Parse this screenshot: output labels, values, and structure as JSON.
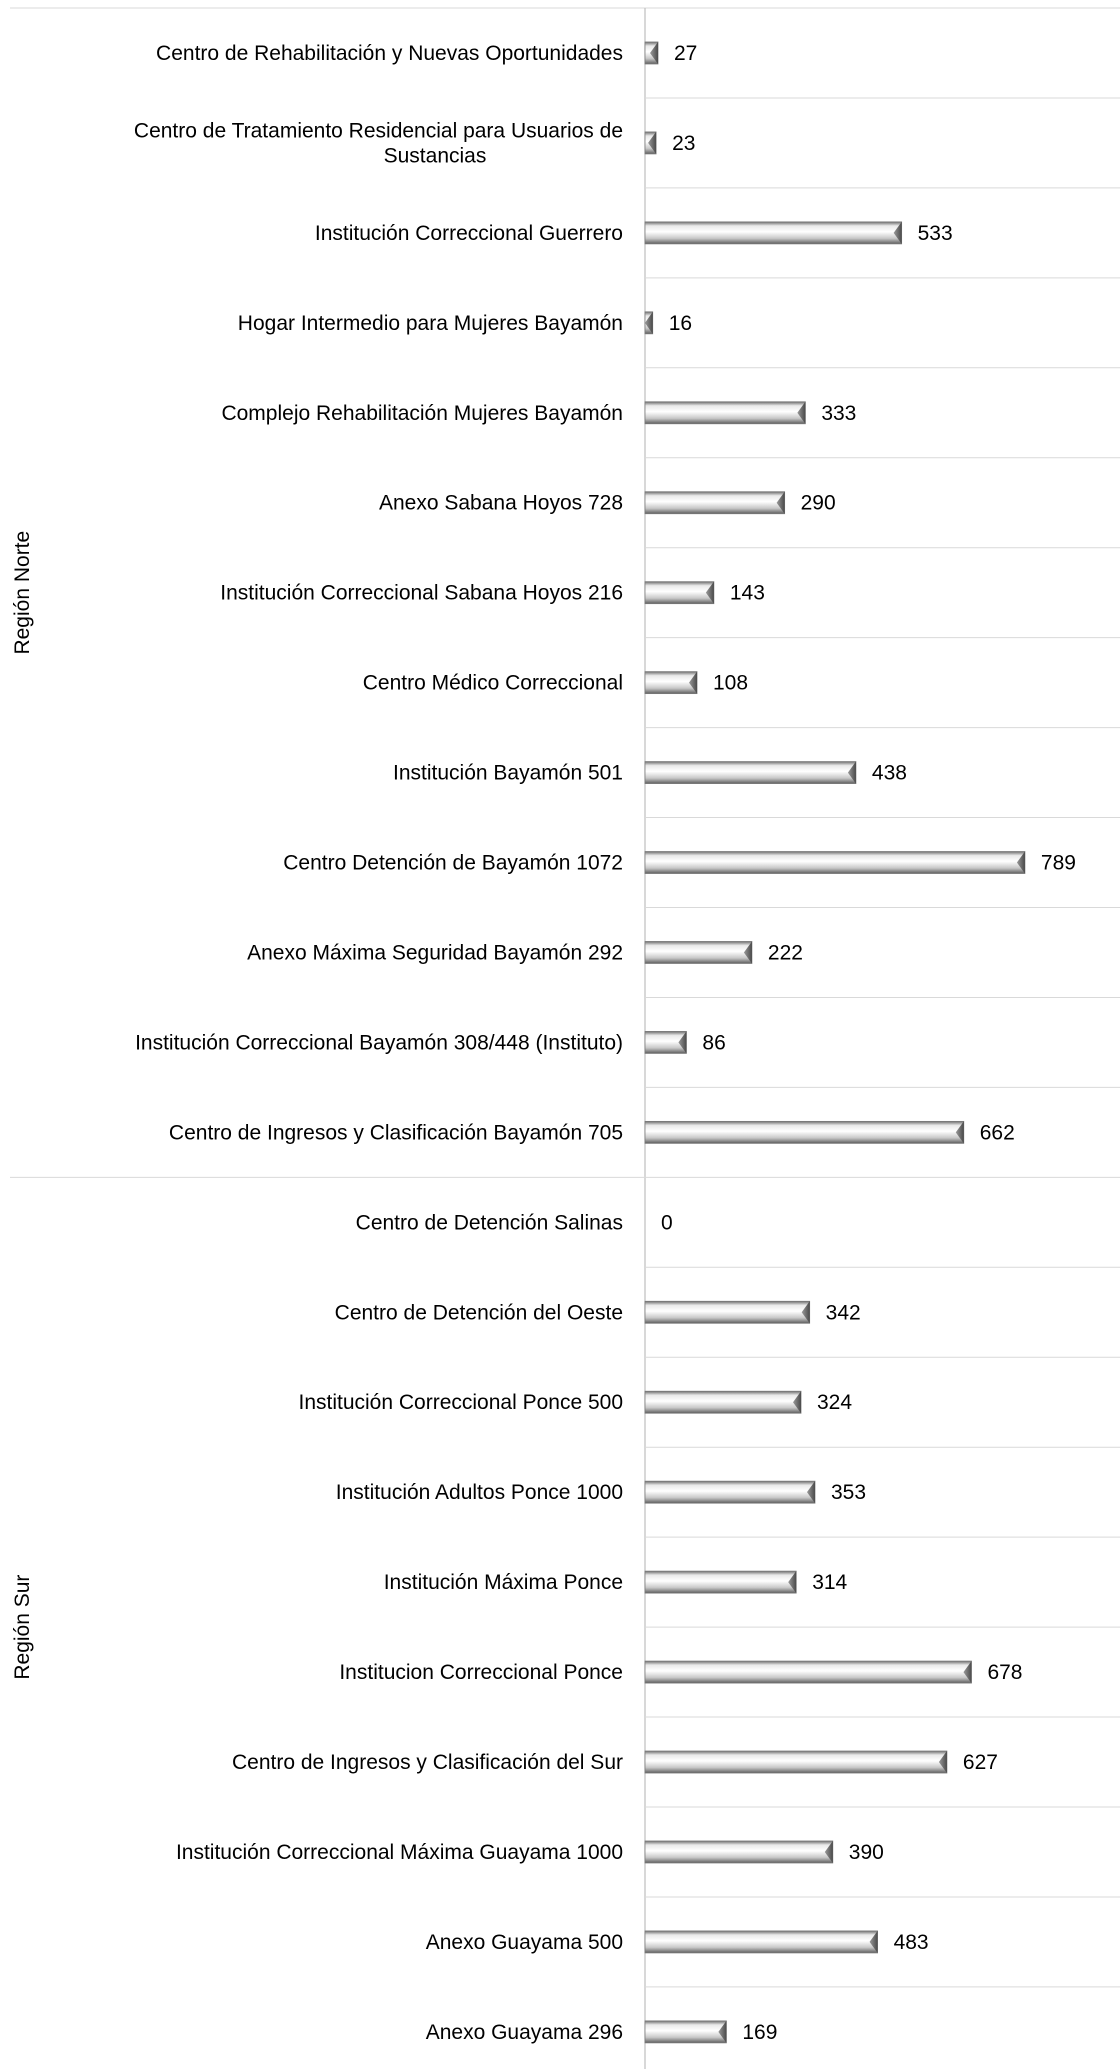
{
  "chart_data": {
    "type": "bar",
    "orientation": "horizontal",
    "bar_color": "#a6a6a6",
    "grid": true,
    "groups": [
      {
        "label": "Región Norte",
        "items": [
          {
            "label": "Centro de Rehabilitación y Nuevas Oportunidades",
            "value": 27
          },
          {
            "label": "Centro de Tratamiento Residencial para Usuarios de Sustancias",
            "lines": [
              "Centro de Tratamiento Residencial para Usuarios de",
              "Sustancias"
            ],
            "value": 23
          },
          {
            "label": "Institución Correccional Guerrero",
            "value": 533
          },
          {
            "label": "Hogar Intermedio para Mujeres Bayamón",
            "value": 16
          },
          {
            "label": "Complejo Rehabilitación Mujeres Bayamón",
            "value": 333
          },
          {
            "label": "Anexo Sabana Hoyos 728",
            "value": 290
          },
          {
            "label": "Institución Correccional Sabana Hoyos 216",
            "value": 143
          },
          {
            "label": "Centro Médico Correccional",
            "value": 108
          },
          {
            "label": "Institución Bayamón 501",
            "value": 438
          },
          {
            "label": "Centro Detención de Bayamón 1072",
            "value": 789
          },
          {
            "label": "Anexo Máxima Seguridad Bayamón 292",
            "value": 222
          },
          {
            "label": "Institución Correccional Bayamón 308/448 (Instituto)",
            "value": 86
          },
          {
            "label": "Centro de Ingresos y Clasificación Bayamón 705",
            "value": 662
          }
        ]
      },
      {
        "label": "Región Sur",
        "items": [
          {
            "label": "Centro de Detención Salinas",
            "value": 0
          },
          {
            "label": "Centro de Detención del Oeste",
            "value": 342
          },
          {
            "label": "Institución Correccional Ponce 500",
            "value": 324
          },
          {
            "label": "Institución Adultos Ponce 1000",
            "value": 353
          },
          {
            "label": "Institución Máxima Ponce",
            "value": 314
          },
          {
            "label": "Institucion Correccional Ponce",
            "value": 678
          },
          {
            "label": "Centro de Ingresos y Clasificación del Sur",
            "value": 627
          },
          {
            "label": "Institución Correccional Máxima Guayama 1000",
            "value": 390
          },
          {
            "label": "Anexo Guayama 500",
            "value": 483
          },
          {
            "label": "Anexo Guayama 296",
            "value": 169
          }
        ]
      }
    ]
  }
}
